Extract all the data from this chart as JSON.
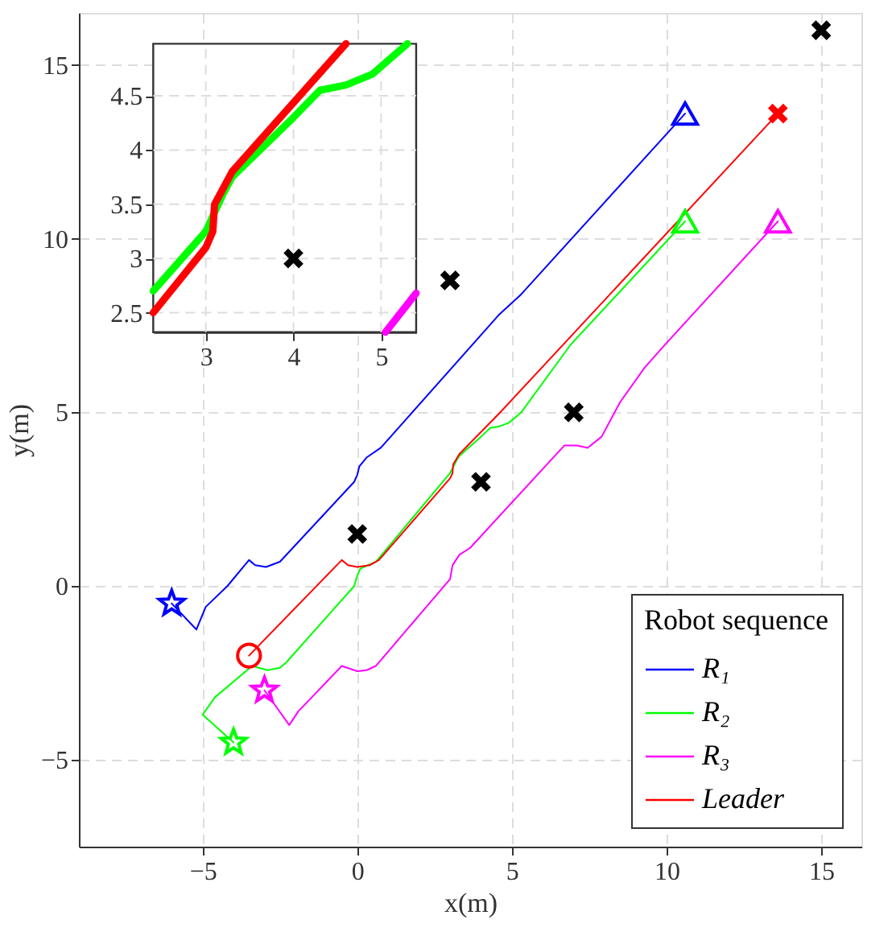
{
  "chart_data": [
    {
      "type": "line",
      "xlabel": "x(m)",
      "ylabel": "y(m)",
      "legend_title": "Robot sequence",
      "legend": "bottom right",
      "grid": true,
      "xlim": [
        -9,
        16.3
      ],
      "ylim": [
        -7.5,
        16.5
      ],
      "xticks": [
        -5,
        0,
        5,
        10,
        15
      ],
      "yticks": [
        -5,
        0,
        5,
        10,
        15
      ],
      "series": [
        {
          "name": "R₁",
          "color": "#0000ff",
          "x": [
            -6,
            -5.2,
            -4.9,
            -4.2,
            -3.5,
            -3.3,
            -2.95,
            -2.5,
            -0.1,
            0.0,
            0.07,
            0.3,
            0.76,
            4.57,
            5.3,
            10.6
          ],
          "values": [
            -0.5,
            -1.25,
            -0.6,
            0.0,
            0.75,
            0.6,
            0.55,
            0.7,
            3.0,
            3.2,
            3.45,
            3.7,
            3.98,
            7.8,
            8.4,
            13.6
          ]
        },
        {
          "name": "R₂",
          "color": "#00ff00",
          "x": [
            -4,
            -5.0,
            -4.6,
            -3.4,
            -2.9,
            -2.5,
            -2.3,
            -0.1,
            0.0,
            0.1,
            0.6,
            3.0,
            3.2,
            3.3,
            4.0,
            4.3,
            4.6,
            4.9,
            5.3,
            6.9,
            10.6
          ],
          "values": [
            -4.5,
            -3.7,
            -3.2,
            -2.3,
            -2.42,
            -2.35,
            -2.2,
            0.0,
            0.3,
            0.5,
            0.7,
            3.25,
            3.6,
            3.75,
            4.3,
            4.55,
            4.6,
            4.7,
            5.0,
            6.95,
            10.5
          ]
        },
        {
          "name": "R₃",
          "color": "#ff00ff",
          "x": [
            -3,
            -2.2,
            -1.9,
            -0.5,
            0.0,
            0.3,
            0.6,
            3.0,
            3.08,
            3.3,
            3.65,
            6.7,
            7.1,
            7.45,
            7.9,
            8.5,
            9.3,
            10.0,
            13.6
          ],
          "values": [
            -3,
            -4.0,
            -3.6,
            -2.3,
            -2.45,
            -2.42,
            -2.3,
            0.2,
            0.6,
            0.9,
            1.1,
            4.05,
            4.05,
            3.98,
            4.3,
            5.3,
            6.3,
            7.0,
            10.5
          ]
        },
        {
          "name": "Leader",
          "color": "#ff0000",
          "x": [
            -3.5,
            -0.5,
            -0.3,
            0.0,
            0.4,
            0.7,
            3.0,
            3.08,
            3.1,
            3.3,
            4.6,
            13.6
          ],
          "values": [
            -2,
            0.75,
            0.6,
            0.55,
            0.6,
            0.75,
            3.1,
            3.25,
            3.5,
            3.8,
            4.98,
            13.6
          ]
        },
        {
          "type": "scatter",
          "marker": "star",
          "color": "#0000ff",
          "x": [
            -6
          ],
          "values": [
            -0.5
          ]
        },
        {
          "type": "scatter",
          "marker": "star",
          "color": "#00ff00",
          "x": [
            -4
          ],
          "values": [
            -4.5
          ]
        },
        {
          "type": "scatter",
          "marker": "star",
          "color": "#ff00ff",
          "x": [
            -3
          ],
          "values": [
            -3
          ]
        },
        {
          "type": "scatter",
          "marker": "circle",
          "color": "#ff0000",
          "x": [
            -3.5
          ],
          "values": [
            -2
          ]
        },
        {
          "type": "scatter",
          "marker": "triangle",
          "color": "#0000ff",
          "x": [
            10.6
          ],
          "values": [
            13.6
          ]
        },
        {
          "type": "scatter",
          "marker": "triangle",
          "color": "#00ff00",
          "x": [
            10.6
          ],
          "values": [
            10.5
          ]
        },
        {
          "type": "scatter",
          "marker": "triangle",
          "color": "#ff00ff",
          "x": [
            13.6
          ],
          "values": [
            10.5
          ]
        },
        {
          "type": "scatter",
          "marker": "cross",
          "color": "#ff0000",
          "x": [
            13.6
          ],
          "values": [
            13.6
          ]
        },
        {
          "type": "scatter",
          "marker": "cross",
          "color": "#000000",
          "x": [
            0,
            4,
            7,
            3,
            15
          ],
          "values": [
            1.5,
            3,
            5,
            8.8,
            16
          ]
        }
      ]
    },
    {
      "type": "line",
      "grid": true,
      "xlim": [
        2.4,
        5.4
      ],
      "ylim": [
        2.32,
        4.98
      ],
      "xticks": [
        3,
        4,
        5
      ],
      "yticks": [
        2.5,
        3,
        3.5,
        4,
        4.5
      ],
      "series": [
        {
          "color": "#00ff00",
          "x": [
            2.4,
            3.0,
            3.2,
            3.3,
            4.0,
            4.3,
            4.6,
            4.9,
            5.3
          ],
          "values": [
            2.7,
            3.25,
            3.6,
            3.75,
            4.3,
            4.55,
            4.6,
            4.7,
            4.98
          ]
        },
        {
          "color": "#ff0000",
          "x": [
            2.4,
            3.0,
            3.08,
            3.1,
            3.3,
            4.6
          ],
          "values": [
            2.5,
            3.1,
            3.25,
            3.5,
            3.8,
            4.98
          ]
        },
        {
          "color": "#ff00ff",
          "x": [
            5.05,
            5.4
          ],
          "values": [
            2.32,
            2.68
          ]
        },
        {
          "type": "scatter",
          "marker": "cross",
          "color": "#000000",
          "x": [
            4
          ],
          "values": [
            3
          ]
        }
      ]
    }
  ]
}
